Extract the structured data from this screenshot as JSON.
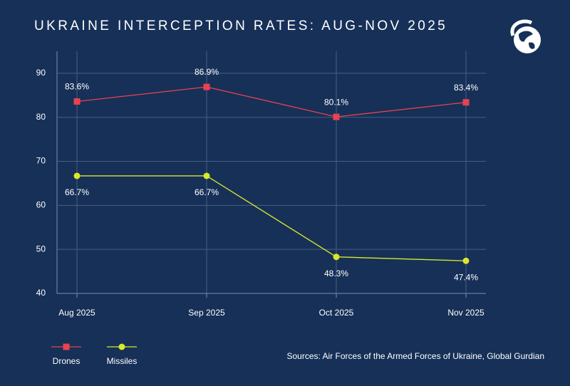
{
  "chart_data": {
    "type": "line",
    "title": "UKRAINE INTERCEPTION RATES: AUG-NOV 2025",
    "categories": [
      "Aug 2025",
      "Sep 2025",
      "Oct 2025",
      "Nov 2025"
    ],
    "series": [
      {
        "name": "Drones",
        "color": "#e8424f",
        "marker": "square",
        "values": [
          83.6,
          86.9,
          80.1,
          83.4
        ],
        "value_labels": [
          "83.6%",
          "86.9%",
          "80.1%",
          "83.4%"
        ]
      },
      {
        "name": "Missiles",
        "color": "#d9e82a",
        "marker": "circle",
        "values": [
          66.7,
          66.7,
          48.3,
          47.4
        ],
        "value_labels": [
          "66.7%",
          "66.7%",
          "48.3%",
          "47.4%"
        ]
      }
    ],
    "ylim": [
      40,
      95
    ],
    "yticks": [
      40,
      50,
      60,
      70,
      80,
      90
    ],
    "grid": true,
    "legend": "bottom-left",
    "source": "Sources: Air Forces of the Armed Forces of Ukraine, Global Gurdian"
  }
}
